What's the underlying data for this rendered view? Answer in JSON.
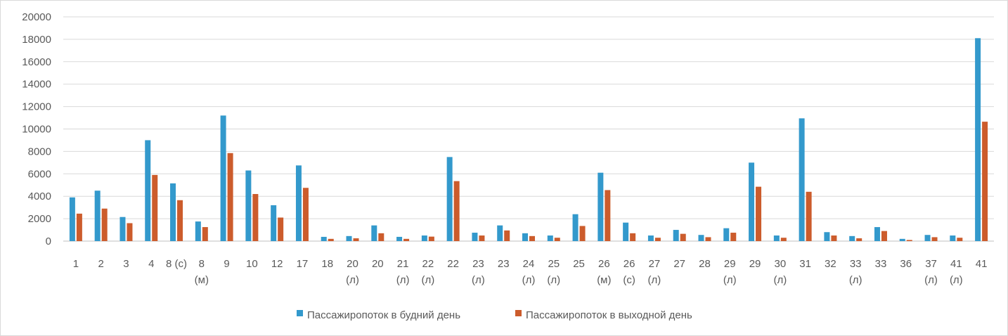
{
  "chart_data": {
    "type": "bar",
    "title": "",
    "xlabel": "",
    "ylabel": "",
    "ylim": [
      0,
      20000
    ],
    "yticks": [
      0,
      2000,
      4000,
      6000,
      8000,
      10000,
      12000,
      14000,
      16000,
      18000,
      20000
    ],
    "grid": "horizontal",
    "legend_position": "bottom",
    "categories": [
      [
        "1"
      ],
      [
        "2"
      ],
      [
        "3"
      ],
      [
        "4"
      ],
      [
        "8 (с)"
      ],
      [
        "8",
        "(м)"
      ],
      [
        "9"
      ],
      [
        "10"
      ],
      [
        "12"
      ],
      [
        "17"
      ],
      [
        "18"
      ],
      [
        "20",
        "(л)"
      ],
      [
        "20"
      ],
      [
        "21",
        "(л)"
      ],
      [
        "22",
        "(л)"
      ],
      [
        "22"
      ],
      [
        "23",
        "(л)"
      ],
      [
        "23"
      ],
      [
        "24",
        "(л)"
      ],
      [
        "25",
        "(л)"
      ],
      [
        "25"
      ],
      [
        "26",
        "(м)"
      ],
      [
        "26",
        "(с)"
      ],
      [
        "27",
        "(л)"
      ],
      [
        "27"
      ],
      [
        "28"
      ],
      [
        "29",
        "(л)"
      ],
      [
        "29"
      ],
      [
        "30",
        "(л)"
      ],
      [
        "31"
      ],
      [
        "32"
      ],
      [
        "33",
        "(л)"
      ],
      [
        "33"
      ],
      [
        "36"
      ],
      [
        "37",
        "(л)"
      ],
      [
        "41",
        "(л)"
      ],
      [
        "41"
      ]
    ],
    "series": [
      {
        "name": "Пассажиропоток в будний день",
        "color": "#3399cc",
        "values": [
          3900,
          4500,
          2150,
          9000,
          5150,
          1750,
          11200,
          6300,
          3200,
          6750,
          380,
          450,
          1400,
          380,
          500,
          7500,
          750,
          1400,
          700,
          500,
          2400,
          6100,
          1650,
          500,
          1000,
          550,
          1150,
          7000,
          500,
          10950,
          800,
          450,
          1250,
          200,
          550,
          500,
          18100
        ]
      },
      {
        "name": "Пассажиропоток в выходной день",
        "color": "#cc5c2c",
        "values": [
          2450,
          2900,
          1600,
          5900,
          3650,
          1250,
          7850,
          4200,
          2100,
          4750,
          200,
          250,
          700,
          200,
          400,
          5350,
          500,
          950,
          450,
          300,
          1350,
          4550,
          700,
          300,
          650,
          350,
          750,
          4850,
          300,
          4400,
          500,
          250,
          900,
          100,
          350,
          300,
          10650
        ]
      }
    ]
  }
}
